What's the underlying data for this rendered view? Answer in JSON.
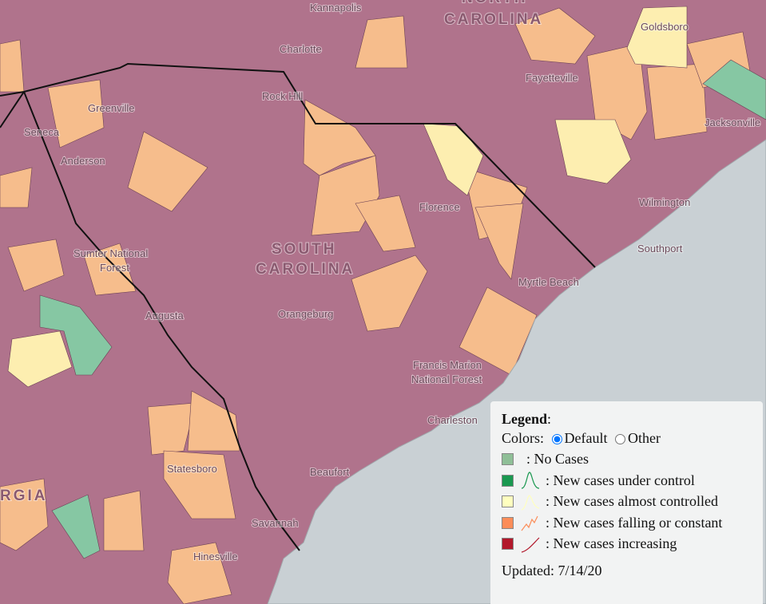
{
  "map": {
    "place_labels": [
      "Kannapolis",
      "Charlotte",
      "NORTH",
      "CAROLINA",
      "Goldsboro",
      "Fayetteville",
      "Greenville",
      "Rock Hill",
      "Jacksonville",
      "Seneca",
      "Anderson",
      "Florence",
      "Wilmington",
      "SOUTH",
      "CAROLINA",
      "Sumter National",
      "Forest",
      "Southport",
      "Myrtle Beach",
      "Augusta",
      "Orangeburg",
      "Francis Marion",
      "National Forest",
      "Charleston",
      "Statesboro",
      "Beaufort",
      "RGIA",
      "Savannah",
      "Hinesville"
    ]
  },
  "legend": {
    "title": "Legend",
    "colon": ":",
    "colors_label": "Colors:",
    "options": [
      "Default",
      "Other"
    ],
    "items": [
      {
        "label": ": No Cases",
        "color": "#8fbf97"
      },
      {
        "label": ": New cases under control",
        "color": "#1a9850"
      },
      {
        "label": ": New cases almost controlled",
        "color": "#ffffbf"
      },
      {
        "label": ": New cases falling or constant",
        "color": "#fc8d59"
      },
      {
        "label": ": New cases increasing",
        "color": "#b2182b"
      }
    ],
    "updated": "Updated: 7/14/20"
  }
}
